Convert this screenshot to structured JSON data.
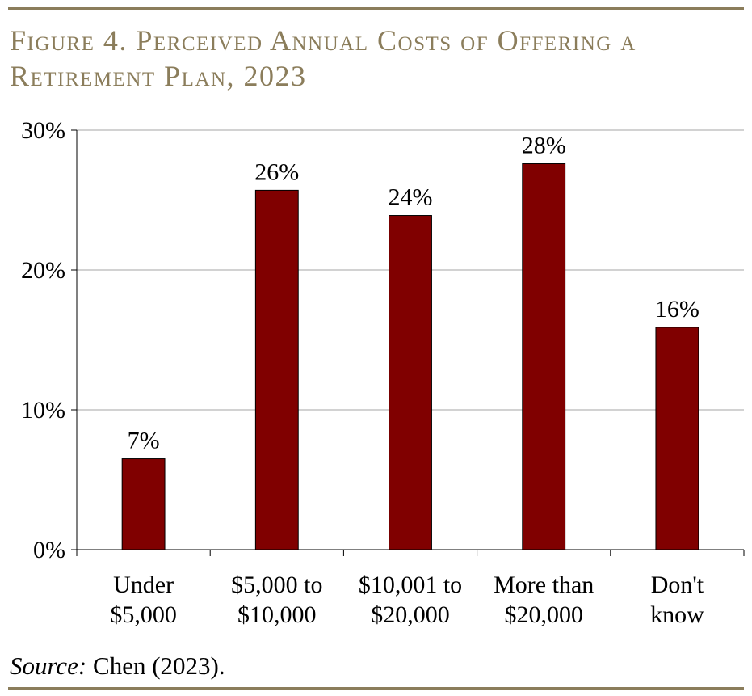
{
  "figure": {
    "title": "Figure 4. Perceived Annual Costs of Offering a Retirement Plan, 2023",
    "source_label": "Source:",
    "source_text": " Chen (2023)."
  },
  "chart_data": {
    "type": "bar",
    "title": "Figure 4. Perceived Annual Costs of Offering a Retirement Plan, 2023",
    "xlabel": "",
    "ylabel": "",
    "categories": [
      [
        "Under",
        "$5,000"
      ],
      [
        "$5,000 to",
        "$10,000"
      ],
      [
        "$10,001 to",
        "$20,000"
      ],
      [
        "More than",
        "$20,000"
      ],
      [
        "Don't",
        "know"
      ]
    ],
    "values": [
      6.5,
      25.7,
      23.9,
      27.6,
      15.9
    ],
    "data_labels": [
      "7%",
      "26%",
      "24%",
      "28%",
      "16%"
    ],
    "ylim": [
      0,
      30
    ],
    "yticks": [
      0,
      10,
      20,
      30
    ],
    "ytick_labels": [
      "0%",
      "10%",
      "20%",
      "30%"
    ],
    "grid": true,
    "legend": "none",
    "colors": {
      "bar": "#800000",
      "bar_edge": "#000000",
      "grid": "#a6a6a6",
      "accent": "#8b7d5b"
    }
  }
}
